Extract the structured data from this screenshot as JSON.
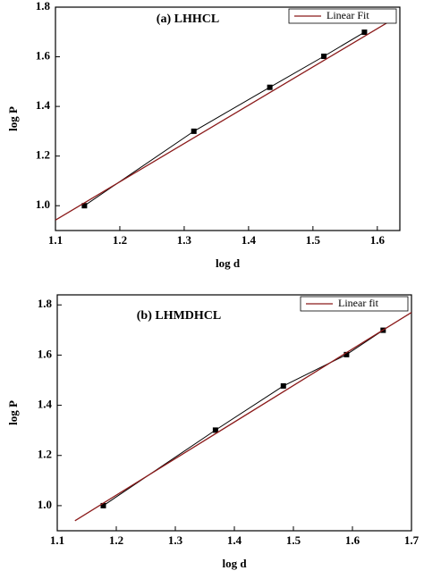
{
  "chart_data": [
    {
      "type": "line",
      "title": "(a) LHHCL",
      "xlabel": "log d",
      "ylabel": "log P",
      "xlim": [
        1.1,
        1.635
      ],
      "ylim": [
        0.9,
        1.8
      ],
      "xticks": [
        1.1,
        1.2,
        1.3,
        1.4,
        1.5,
        1.6
      ],
      "yticks": [
        {
          "value": 1,
          "label": "1.0"
        },
        1.2,
        1.4,
        1.6,
        1.8
      ],
      "legend": "upper right",
      "series": [
        {
          "color": "#000000",
          "marker": "square",
          "x": [
            1.145,
            1.315,
            1.433,
            1.517,
            1.58
          ],
          "values": [
            1.0,
            1.3,
            1.477,
            1.602,
            1.699
          ]
        },
        {
          "name": "Linear Fit",
          "color": "#8b1a1a",
          "x": [
            1.1,
            1.625
          ],
          "values": [
            0.942,
            1.752
          ]
        }
      ]
    },
    {
      "type": "line",
      "title": "(b) LHMDHCL",
      "xlabel": "log d",
      "ylabel": "log P",
      "xlim": [
        1.1,
        1.7
      ],
      "ylim": [
        0.9,
        1.84
      ],
      "xticks": [
        1.1,
        1.2,
        1.3,
        1.4,
        1.5,
        1.6,
        1.7
      ],
      "yticks": [
        {
          "value": 1,
          "label": "1.0"
        },
        1.2,
        1.4,
        1.6,
        1.8
      ],
      "legend": "upper right",
      "series": [
        {
          "color": "#000000",
          "marker": "square",
          "x": [
            1.178,
            1.368,
            1.483,
            1.59,
            1.652
          ],
          "values": [
            1.0,
            1.301,
            1.477,
            1.602,
            1.699
          ]
        },
        {
          "name": "Linear fit",
          "color": "#8b1a1a",
          "x": [
            1.13,
            1.7
          ],
          "values": [
            0.94,
            1.77
          ]
        }
      ]
    }
  ]
}
